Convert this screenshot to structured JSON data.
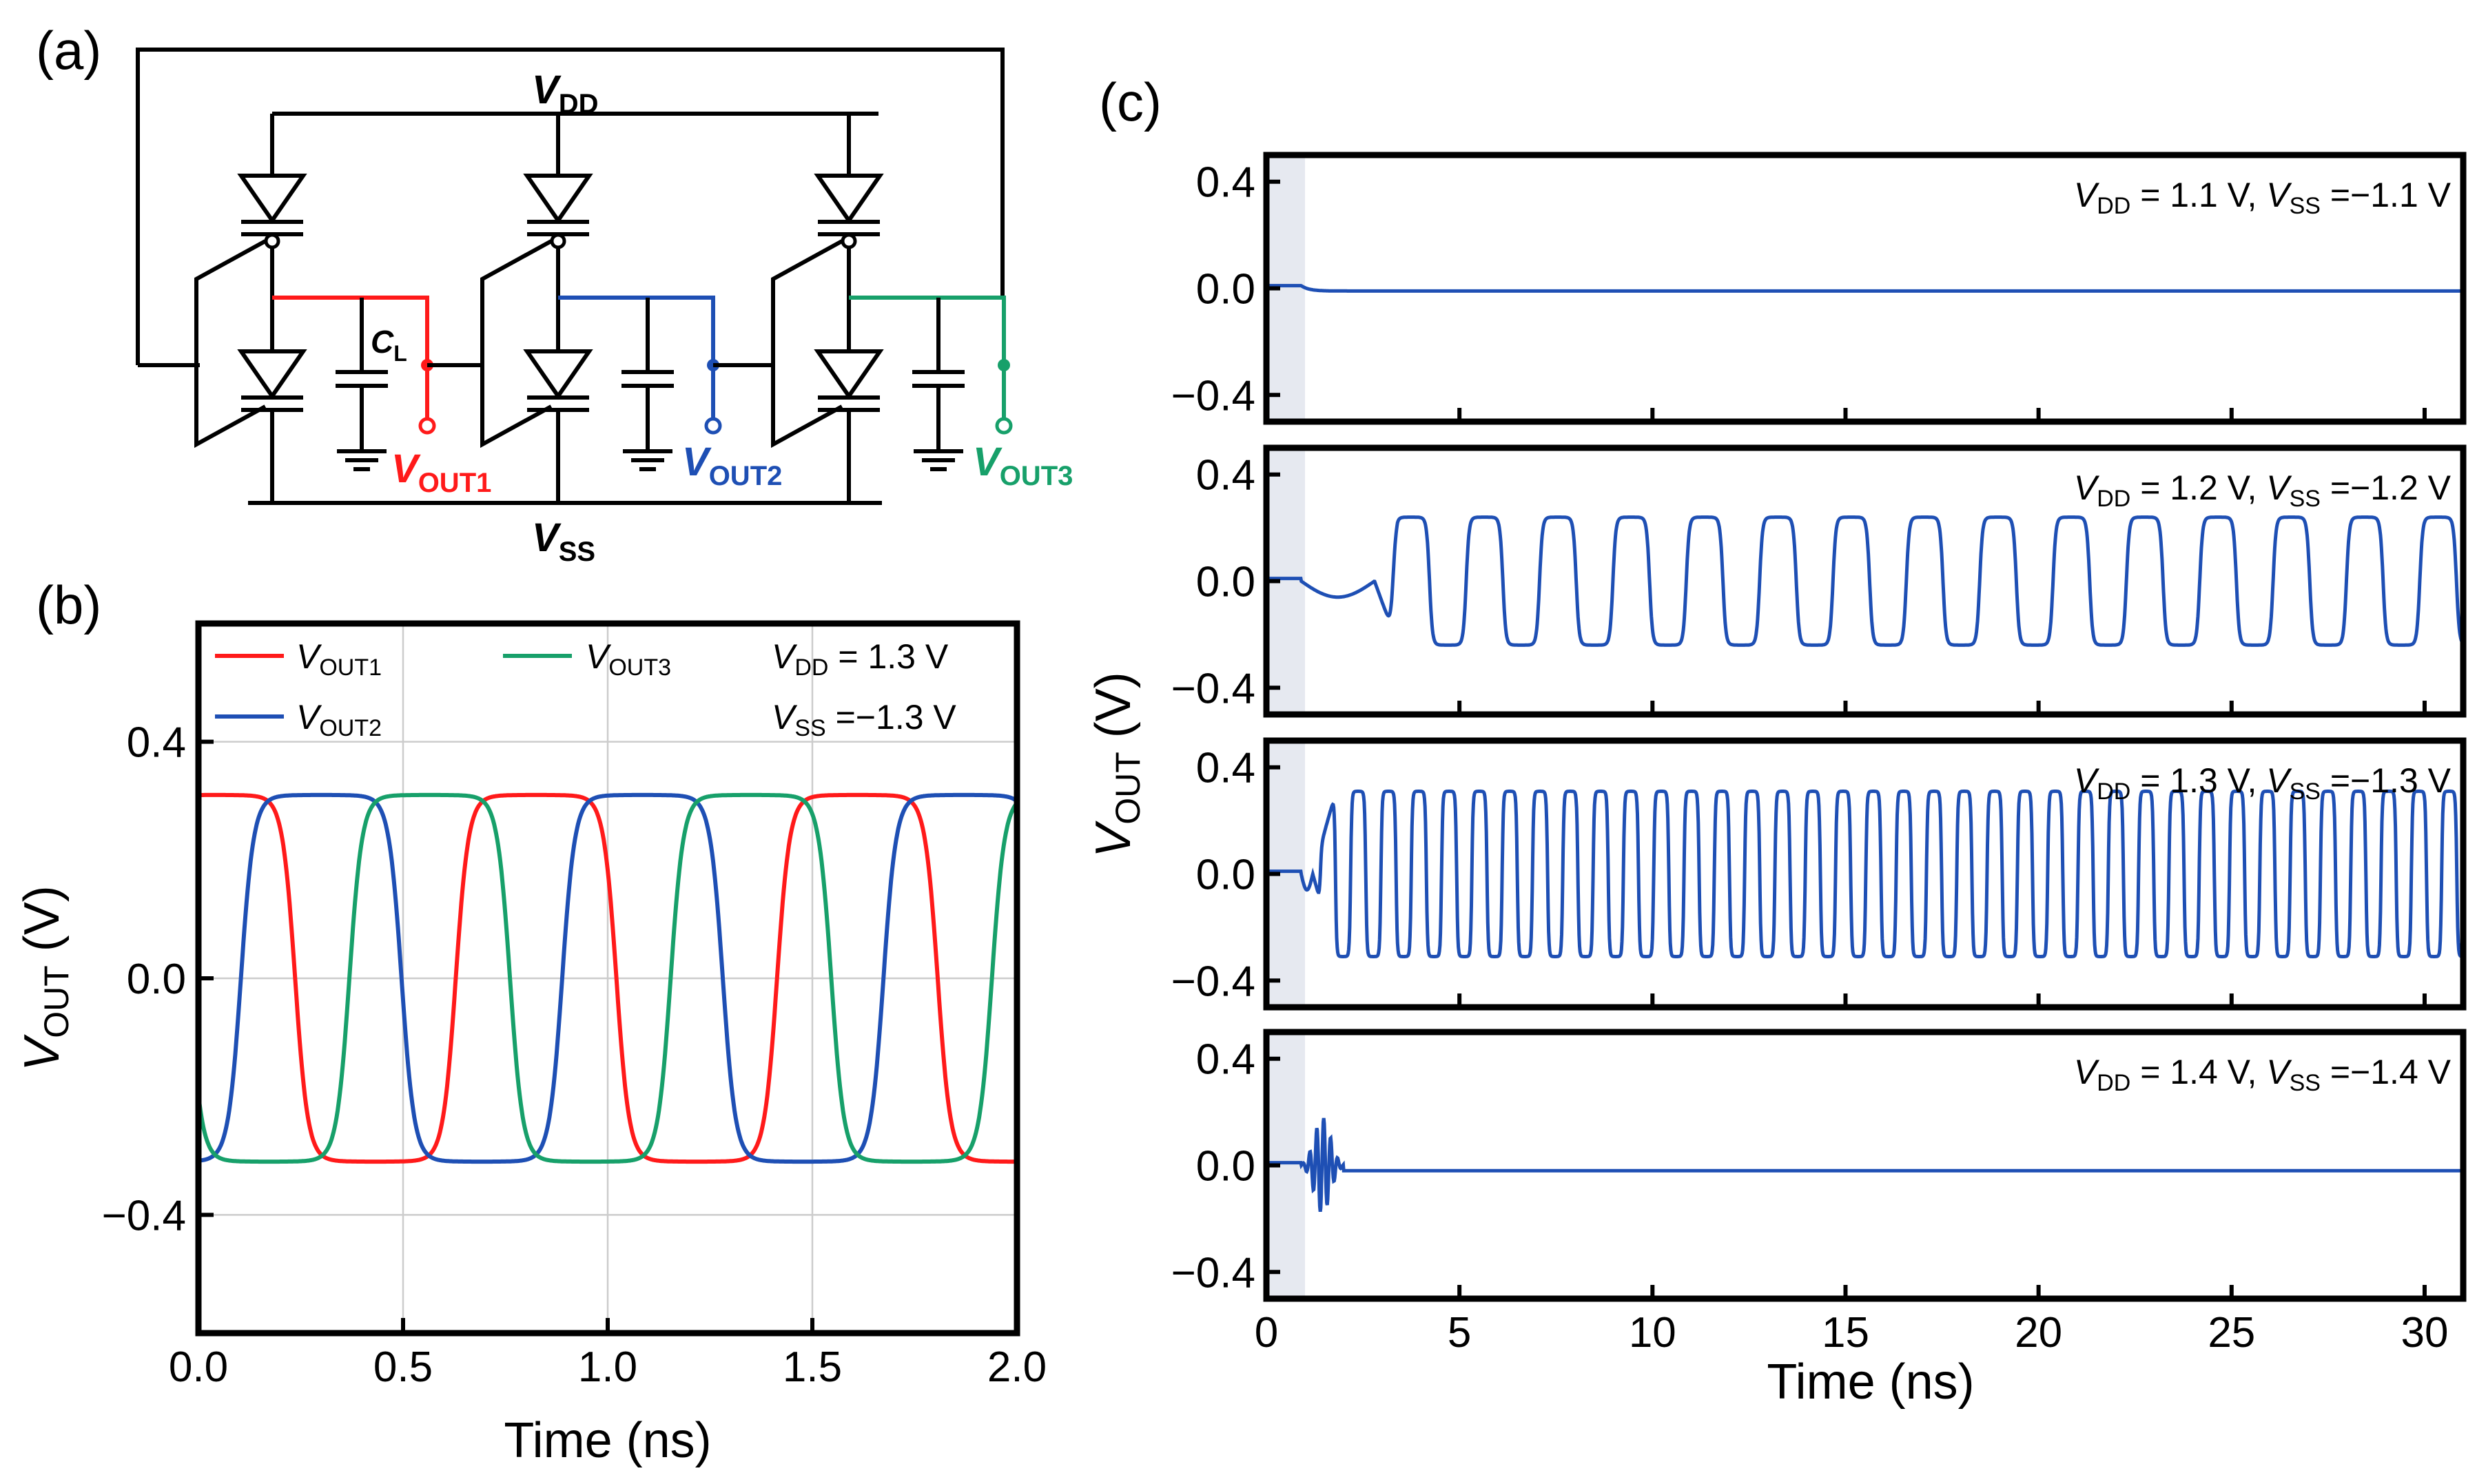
{
  "panels": {
    "a": {
      "label": "(a)"
    },
    "b": {
      "label": "(b)"
    },
    "c": {
      "label": "(c)"
    }
  },
  "circuit": {
    "vdd": {
      "main": "V",
      "sub": "DD"
    },
    "vss": {
      "main": "V",
      "sub": "SS"
    },
    "cl": {
      "main": "C",
      "sub": "L"
    },
    "outputs": [
      {
        "main": "V",
        "sub": "OUT1",
        "color": "#ff1a1a"
      },
      {
        "main": "V",
        "sub": "OUT2",
        "color": "#1e4fb4"
      },
      {
        "main": "V",
        "sub": "OUT3",
        "color": "#17a06a"
      }
    ]
  },
  "chart_data": [
    {
      "id": "b",
      "type": "line",
      "xlabel": "Time (ns)",
      "ylabel": {
        "main": "V",
        "sub": "OUT",
        "unit": " (V)"
      },
      "xlim": [
        0.0,
        2.0
      ],
      "ylim": [
        -0.6,
        0.6
      ],
      "xticks": [
        "0.0",
        "0.5",
        "1.0",
        "1.5",
        "2.0"
      ],
      "xtick_values": [
        0.0,
        0.5,
        1.0,
        1.5,
        2.0
      ],
      "yticks": [
        "0.4",
        "0.0",
        "−0.4"
      ],
      "ytick_values": [
        0.4,
        0.0,
        -0.4
      ],
      "grid": true,
      "period_ns": 0.785,
      "amplitude_v": 0.31,
      "annotation": {
        "vdd_label": "V",
        "vdd_sub": "DD",
        "vdd_value": " =  1.3 V",
        "vss_label": "V",
        "vss_sub": "SS",
        "vss_value": " =−1.3 V"
      },
      "series": [
        {
          "name": "V",
          "sub": "OUT1",
          "color": "#ff1a1a",
          "phase_ns": 0.04
        },
        {
          "name": "V",
          "sub": "OUT2",
          "color": "#1e4fb4",
          "phase_ns": 0.3
        },
        {
          "name": "V",
          "sub": "OUT3",
          "color": "#17a06a",
          "phase_ns": 0.565
        }
      ]
    },
    {
      "id": "c",
      "type": "line",
      "xlabel": "Time (ns)",
      "ylabel": {
        "main": "V",
        "sub": "OUT",
        "unit": " (V)"
      },
      "xlim": [
        0,
        31
      ],
      "ylim": [
        -0.5,
        0.5
      ],
      "xticks": [
        "0",
        "5",
        "10",
        "15",
        "20",
        "25",
        "30"
      ],
      "xtick_values": [
        0,
        5,
        10,
        15,
        20,
        25,
        30
      ],
      "yticks": [
        "0.4",
        "0.0",
        "−0.4"
      ],
      "ytick_values": [
        0.4,
        0.0,
        -0.4
      ],
      "shaded_region_ns": [
        0,
        1
      ],
      "line_color": "#1e4fb4",
      "subplots": [
        {
          "vdd": " =  1.1 V, ",
          "vss": " =−1.1 V",
          "behavior": "decays",
          "settle_v": -0.01
        },
        {
          "vdd": " =  1.2 V, ",
          "vss": " =−1.2 V",
          "behavior": "oscillates",
          "amplitude_v": 0.24,
          "period_ns": 1.9,
          "start_ns": 2.8
        },
        {
          "vdd": " =  1.3 V, ",
          "vss": " =−1.3 V",
          "behavior": "oscillates",
          "amplitude_v": 0.31,
          "period_ns": 0.785,
          "start_ns": 1.2
        },
        {
          "vdd": " =  1.4 V, ",
          "vss": " =−1.4 V",
          "behavior": "decays",
          "settle_v": -0.02
        }
      ]
    }
  ]
}
